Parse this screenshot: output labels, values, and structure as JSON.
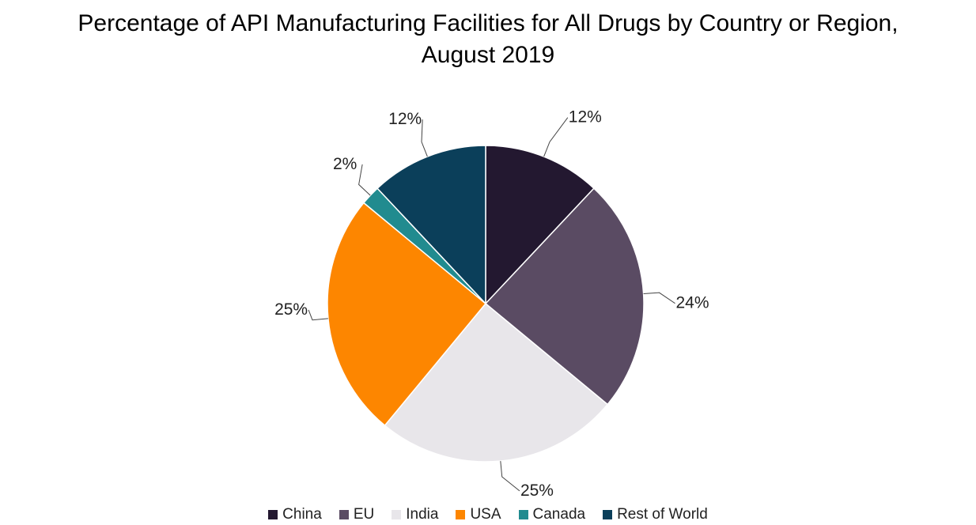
{
  "chart_data": {
    "type": "pie",
    "title_lines": [
      "Percentage of API Manufacturing Facilities for All Drugs by Country or Region,",
      "August 2019"
    ],
    "categories": [
      "China",
      "EU",
      "India",
      "USA",
      "Canada",
      "Rest of World"
    ],
    "values": [
      12,
      24,
      25,
      25,
      2,
      12
    ],
    "labels": [
      "12%",
      "24%",
      "25%",
      "25%",
      "2%",
      "12%"
    ],
    "colors": [
      "#231830",
      "#5a4b63",
      "#e8e6ea",
      "#fd8600",
      "#218b8f",
      "#0b3f5a"
    ],
    "start": "12 o'clock, clockwise",
    "legend_position": "bottom"
  }
}
